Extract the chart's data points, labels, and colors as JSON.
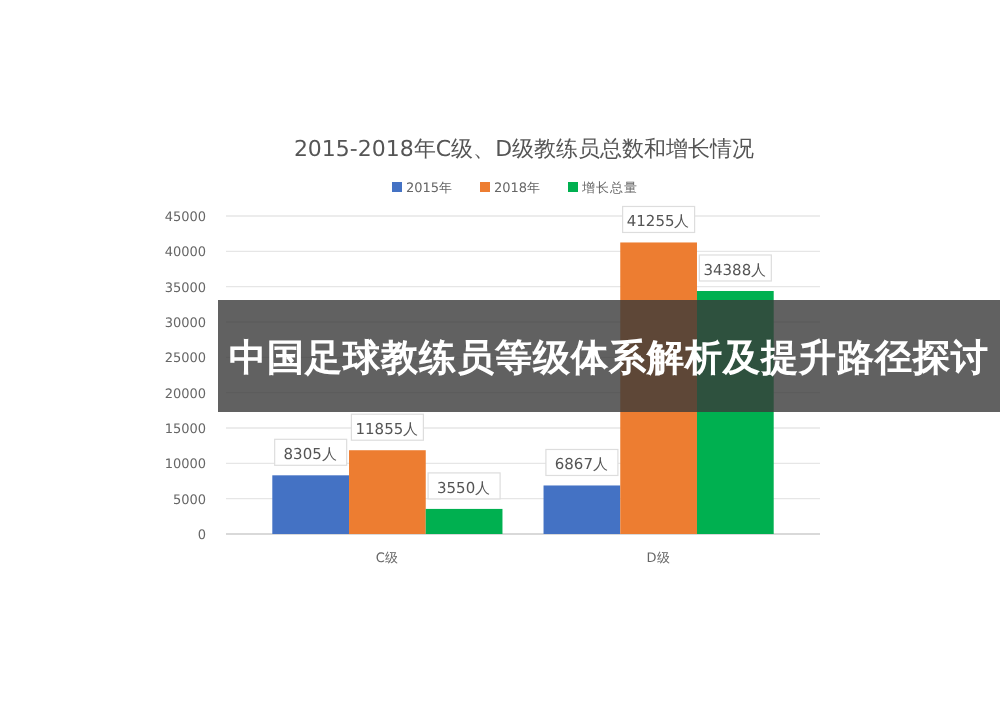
{
  "chart_data": {
    "type": "bar",
    "title": "2015-2018年C级、D级教练员总数和增长情况",
    "categories": [
      "C级",
      "D级"
    ],
    "series": [
      {
        "name": "2015年",
        "color": "#4472c4",
        "values": [
          8305,
          6867
        ],
        "value_labels": [
          "8305人",
          "6867人"
        ]
      },
      {
        "name": "2018年",
        "color": "#ed7d31",
        "values": [
          11855,
          41255
        ],
        "value_labels": [
          "11855人",
          "41255人"
        ]
      },
      {
        "name": "增长总量",
        "color": "#00b050",
        "values": [
          3550,
          34388
        ],
        "value_labels": [
          "3550人",
          "34388人"
        ]
      }
    ],
    "ylim": [
      0,
      45000
    ],
    "yticks": [
      0,
      5000,
      10000,
      15000,
      20000,
      25000,
      30000,
      35000,
      40000,
      45000
    ],
    "grid": "y",
    "legend": "top",
    "annotations": [
      "中国足球教练员等级体系解析及提升路径探讨"
    ]
  }
}
